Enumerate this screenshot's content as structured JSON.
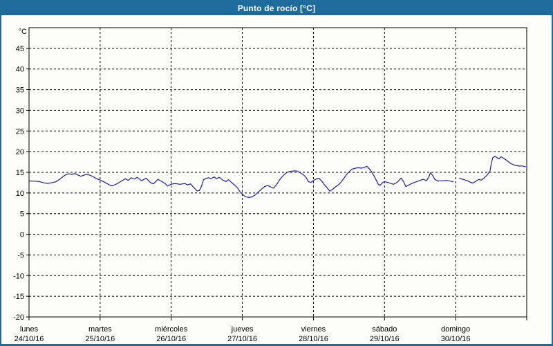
{
  "window": {
    "title": "Punto de rocío [°C]"
  },
  "colors": {
    "titlebar_bg": "#1e6b9e",
    "titlebar_text": "#ffffff",
    "window_border": "#1e6b9e",
    "panel_bg": "#fdfdfa",
    "frame": "#000000",
    "grid": "#000000",
    "axis_text": "#000000",
    "series_line": "#1a1ab8"
  },
  "chart_data": {
    "type": "line",
    "title": "Punto de rocío [°C]",
    "ylabel_unit": "°C",
    "grid": "dashed",
    "legend": "none",
    "y_axis": {
      "min": -20,
      "max": 50,
      "tick_step": 5,
      "tick_labels": [
        45,
        40,
        35,
        30,
        25,
        20,
        15,
        10,
        5,
        0,
        -5,
        -10,
        -15,
        -20
      ]
    },
    "x_axis": {
      "hours_total": 168,
      "hours_per_day": 24,
      "days": [
        {
          "name": "lunes",
          "date": "24/10/16"
        },
        {
          "name": "martes",
          "date": "25/10/16"
        },
        {
          "name": "miércoles",
          "date": "26/10/16"
        },
        {
          "name": "jueves",
          "date": "27/10/16"
        },
        {
          "name": "viernes",
          "date": "28/10/16"
        },
        {
          "name": "sábado",
          "date": "29/10/16"
        },
        {
          "name": "domingo",
          "date": "30/10/16"
        }
      ]
    },
    "series": [
      {
        "name": "Punto de rocío",
        "unit": "°C",
        "points_hours_celsius": [
          [
            0,
            12.9
          ],
          [
            2,
            12.85
          ],
          [
            3.5,
            12.75
          ],
          [
            5,
            12.45
          ],
          [
            6,
            12.3
          ],
          [
            7.5,
            12.45
          ],
          [
            9,
            12.7
          ],
          [
            10.5,
            13.4
          ],
          [
            11.5,
            14.0
          ],
          [
            12.5,
            14.45
          ],
          [
            13.5,
            14.65
          ],
          [
            14.5,
            14.5
          ],
          [
            15.5,
            14.7
          ],
          [
            16.5,
            14.35
          ],
          [
            17.5,
            14.05
          ],
          [
            18.5,
            14.3
          ],
          [
            19.5,
            14.55
          ],
          [
            20.5,
            14.3
          ],
          [
            21.5,
            14.0
          ],
          [
            22.5,
            13.6
          ],
          [
            24,
            13.1
          ],
          [
            25.5,
            12.6
          ],
          [
            27,
            12.0
          ],
          [
            28,
            11.7
          ],
          [
            29.5,
            12.15
          ],
          [
            31,
            12.8
          ],
          [
            32.5,
            13.45
          ],
          [
            33.5,
            13.05
          ],
          [
            34.5,
            13.7
          ],
          [
            35.5,
            13.35
          ],
          [
            36.5,
            13.8
          ],
          [
            38,
            12.95
          ],
          [
            39.5,
            13.6
          ],
          [
            41,
            12.5
          ],
          [
            42,
            12.2
          ],
          [
            43.5,
            13.3
          ],
          [
            44.5,
            12.9
          ],
          [
            46,
            12.25
          ],
          [
            46.8,
            11.65
          ],
          [
            48,
            12.15
          ],
          [
            49.5,
            12.25
          ],
          [
            51,
            12.1
          ],
          [
            52.5,
            12.3
          ],
          [
            53.5,
            11.95
          ],
          [
            54.5,
            12.2
          ],
          [
            55.5,
            11.4
          ],
          [
            56.7,
            10.5
          ],
          [
            57.5,
            10.6
          ],
          [
            58.2,
            11.6
          ],
          [
            58.9,
            13.2
          ],
          [
            59.6,
            13.5
          ],
          [
            60.5,
            13.7
          ],
          [
            61.5,
            13.5
          ],
          [
            62.5,
            13.9
          ],
          [
            63.3,
            13.45
          ],
          [
            64.2,
            13.8
          ],
          [
            65.3,
            13.15
          ],
          [
            66.5,
            12.75
          ],
          [
            67.3,
            13.2
          ],
          [
            68.5,
            12.45
          ],
          [
            69.4,
            11.9
          ],
          [
            70.4,
            11.2
          ],
          [
            71.2,
            10.3
          ],
          [
            72,
            9.7
          ],
          [
            73,
            9.1
          ],
          [
            74.2,
            8.9
          ],
          [
            75.3,
            9.05
          ],
          [
            76.3,
            9.5
          ],
          [
            77.5,
            10.3
          ],
          [
            78.5,
            10.95
          ],
          [
            79.5,
            11.55
          ],
          [
            80.5,
            11.8
          ],
          [
            81.5,
            11.5
          ],
          [
            82.5,
            11.15
          ],
          [
            83.5,
            12.0
          ],
          [
            84.8,
            13.4
          ],
          [
            86,
            14.4
          ],
          [
            87,
            14.95
          ],
          [
            88,
            15.2
          ],
          [
            89.5,
            15.35
          ],
          [
            90.5,
            15.3
          ],
          [
            91.5,
            14.9
          ],
          [
            92.5,
            14.5
          ],
          [
            93.5,
            13.8
          ],
          [
            94.3,
            12.75
          ],
          [
            95.2,
            12.55
          ],
          [
            96,
            13.0
          ],
          [
            97,
            13.4
          ],
          [
            97.8,
            13.6
          ],
          [
            98.8,
            12.9
          ],
          [
            99.8,
            11.9
          ],
          [
            100.8,
            11.1
          ],
          [
            101.5,
            10.45
          ],
          [
            102.5,
            10.9
          ],
          [
            103.5,
            11.5
          ],
          [
            104.5,
            12.0
          ],
          [
            105.3,
            12.6
          ],
          [
            106.3,
            13.6
          ],
          [
            107.3,
            14.6
          ],
          [
            108.3,
            15.3
          ],
          [
            109.2,
            15.8
          ],
          [
            110.2,
            16.0
          ],
          [
            111.2,
            16.1
          ],
          [
            112.2,
            16.0
          ],
          [
            113.2,
            16.2
          ],
          [
            114,
            16.45
          ],
          [
            114.8,
            15.9
          ],
          [
            115.6,
            15.2
          ],
          [
            116.4,
            14.2
          ],
          [
            117.1,
            13.2
          ],
          [
            117.9,
            12.1
          ],
          [
            118.5,
            11.85
          ],
          [
            119.2,
            12.45
          ],
          [
            120,
            12.75
          ],
          [
            121,
            12.55
          ],
          [
            122,
            12.35
          ],
          [
            123,
            12.1
          ],
          [
            124.2,
            12.55
          ],
          [
            125,
            13.1
          ],
          [
            125.6,
            13.6
          ],
          [
            126.3,
            12.9
          ],
          [
            127.2,
            11.55
          ],
          [
            128.3,
            11.95
          ],
          [
            129.3,
            12.35
          ],
          [
            130.7,
            12.7
          ],
          [
            131.8,
            13.0
          ],
          [
            133,
            13.3
          ],
          [
            134.2,
            13.0
          ],
          [
            134.9,
            13.8
          ],
          [
            135.5,
            14.9
          ],
          [
            136.2,
            14.3
          ],
          [
            137,
            13.3
          ],
          [
            138,
            12.9
          ],
          [
            139.5,
            12.95
          ],
          [
            141,
            13.0
          ],
          [
            142.3,
            12.85
          ],
          [
            143.2,
            12.7
          ],
          null,
          [
            145.3,
            13.6
          ],
          [
            146.3,
            13.35
          ],
          [
            147.4,
            13.1
          ],
          [
            148.3,
            12.85
          ],
          [
            149.2,
            12.5
          ],
          [
            149.9,
            12.4
          ],
          [
            150.9,
            12.85
          ],
          [
            151.8,
            13.3
          ],
          [
            152.6,
            13.1
          ],
          [
            153.4,
            13.5
          ],
          [
            154.3,
            14.1
          ],
          [
            155.1,
            14.8
          ],
          [
            155.6,
            15.3
          ],
          [
            156,
            17.0
          ],
          [
            156.5,
            18.5
          ],
          [
            157.2,
            18.85
          ],
          [
            157.9,
            18.6
          ],
          [
            158.6,
            18.2
          ],
          [
            159.3,
            18.75
          ],
          [
            160,
            18.5
          ],
          [
            160.8,
            18.1
          ],
          [
            161.7,
            17.6
          ],
          [
            162.7,
            17.1
          ],
          [
            163.7,
            16.8
          ],
          [
            164.7,
            16.6
          ],
          [
            165.6,
            16.5
          ],
          [
            166.4,
            16.55
          ],
          [
            167,
            16.45
          ],
          [
            167.6,
            16.35
          ]
        ]
      }
    ]
  }
}
